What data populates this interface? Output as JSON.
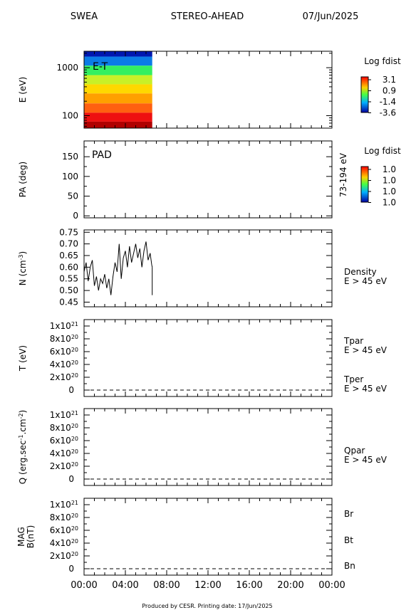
{
  "header": {
    "instrument": "SWEA",
    "mission": "STEREO-AHEAD",
    "date": "07/Jun/2025"
  },
  "footer": "Produced by CESR.   Printing date: 17/Jun/2025",
  "x_ticks": [
    "00:00",
    "04:00",
    "08:00",
    "12:00",
    "16:00",
    "20:00",
    "00:00"
  ],
  "chart_data": [
    {
      "id": "energy_time",
      "type": "heatmap",
      "ylabel": "E (eV)",
      "yscale": "log",
      "ylim": [
        55,
        2200
      ],
      "yticks": [
        {
          "v": 100,
          "label": "100"
        },
        {
          "v": 1000,
          "label": "1000"
        }
      ],
      "xlim_hours": [
        0,
        24
      ],
      "data_extent_hours": [
        0,
        6.6
      ],
      "annotation": "E-T",
      "colorbar": {
        "title": "Log fdist",
        "labels": [
          "3.1",
          "0.9",
          "-1.4",
          "-3.6"
        ]
      },
      "bands": [
        {
          "e_low": 1700,
          "e_high": 2200,
          "color": "#0018b0"
        },
        {
          "e_low": 1100,
          "e_high": 1700,
          "color": "#0b7ce6"
        },
        {
          "e_low": 700,
          "e_high": 1100,
          "color": "#33f060"
        },
        {
          "e_low": 450,
          "e_high": 700,
          "color": "#c8f028"
        },
        {
          "e_low": 290,
          "e_high": 450,
          "color": "#ffd800"
        },
        {
          "e_low": 180,
          "e_high": 290,
          "color": "#ffa000"
        },
        {
          "e_low": 115,
          "e_high": 180,
          "color": "#ff6010"
        },
        {
          "e_low": 75,
          "e_high": 115,
          "color": "#ee1010"
        },
        {
          "e_low": 55,
          "e_high": 75,
          "color": "#b00000"
        }
      ]
    },
    {
      "id": "pitch_angle",
      "type": "heatmap",
      "ylabel": "PA (deg)",
      "ylim": [
        -5,
        190
      ],
      "yticks": [
        0,
        50,
        100,
        150
      ],
      "annotation": "PAD",
      "right_label": "73-194 eV",
      "colorbar": {
        "title": "Log fdist",
        "labels": [
          "1.0",
          "1.0",
          "1.0",
          "1.0"
        ]
      }
    },
    {
      "id": "density",
      "type": "line",
      "ylabel": "N (cm",
      "ylabel_sup": "-3",
      "ylabel_end": ")",
      "ylim": [
        0.43,
        0.76
      ],
      "yticks": [
        "0.45",
        "0.50",
        "0.55",
        "0.60",
        "0.65",
        "0.70",
        "0.75"
      ],
      "right_labels": [
        {
          "text": "Density",
          "color": "#000000"
        },
        {
          "text": "E > 45 eV",
          "color": "#000000"
        }
      ],
      "series": [
        {
          "x_hours": [
            0.0,
            0.2,
            0.4,
            0.6,
            0.8,
            1.0,
            1.2,
            1.4,
            1.6,
            1.8,
            2.0,
            2.2,
            2.4,
            2.6,
            2.8,
            3.0,
            3.2,
            3.4,
            3.6,
            3.8,
            4.0,
            4.2,
            4.4,
            4.6,
            4.8,
            5.0,
            5.2,
            5.4,
            5.6,
            5.8,
            6.0,
            6.2,
            6.4,
            6.55,
            6.6
          ],
          "values": [
            0.58,
            0.62,
            0.54,
            0.6,
            0.63,
            0.52,
            0.56,
            0.5,
            0.55,
            0.53,
            0.57,
            0.51,
            0.55,
            0.48,
            0.56,
            0.62,
            0.58,
            0.7,
            0.55,
            0.64,
            0.67,
            0.6,
            0.69,
            0.62,
            0.66,
            0.7,
            0.64,
            0.68,
            0.6,
            0.67,
            0.71,
            0.63,
            0.66,
            0.61,
            0.6
          ]
        }
      ]
    },
    {
      "id": "temperature",
      "type": "line",
      "ylabel": "T (eV)",
      "ylim": [
        -0.1,
        1.1
      ],
      "ytick_values": [
        0,
        0.2,
        0.4,
        0.6,
        0.8,
        1.0
      ],
      "ytick_mantissas": [
        "",
        "2x10",
        "4x10",
        "6x10",
        "8x10",
        "1x10"
      ],
      "ytick_zero": "0",
      "ytick_exponent": "20",
      "ytick_top_exponent": "21",
      "right_labels": [
        {
          "text": "Tpar",
          "color": "#000000"
        },
        {
          "text": "E > 45 eV",
          "color": "#000000"
        },
        {
          "text": "Tper",
          "color": "#e00000"
        },
        {
          "text": "E > 45 eV",
          "color": "#e00000"
        }
      ],
      "series": [
        {
          "name": "Tpar",
          "x_hours": [
            0,
            24
          ],
          "values": [
            0,
            0
          ]
        }
      ]
    },
    {
      "id": "heat_flux",
      "type": "line",
      "ylabel": "Q (erg.sec",
      "ylabel_sup": "-1",
      "ylabel_mid": ".cm",
      "ylabel_sup2": "-2",
      "ylabel_end": ")",
      "ylim": [
        -0.1,
        1.1
      ],
      "ytick_values": [
        0,
        0.2,
        0.4,
        0.6,
        0.8,
        1.0
      ],
      "right_labels": [
        {
          "text": "Qpar",
          "color": "#000000"
        },
        {
          "text": "E > 45 eV",
          "color": "#000000"
        }
      ],
      "series": [
        {
          "name": "Qpar",
          "x_hours": [
            0,
            24
          ],
          "values": [
            0,
            0
          ]
        }
      ]
    },
    {
      "id": "magnetic_field",
      "type": "line",
      "ylabel": "MAG",
      "ylabel2": "B(nT)",
      "ylim": [
        -0.1,
        1.1
      ],
      "ytick_values": [
        0,
        0.2,
        0.4,
        0.6,
        0.8,
        1.0
      ],
      "right_labels": [
        {
          "text": "Br",
          "color": "#000000"
        },
        {
          "text": "Bt",
          "color": "#e00000"
        },
        {
          "text": "Bn",
          "color": "#0030d0"
        }
      ],
      "series": [
        {
          "name": "Br",
          "x_hours": [
            0,
            24
          ],
          "values": [
            0,
            0
          ]
        }
      ]
    }
  ]
}
